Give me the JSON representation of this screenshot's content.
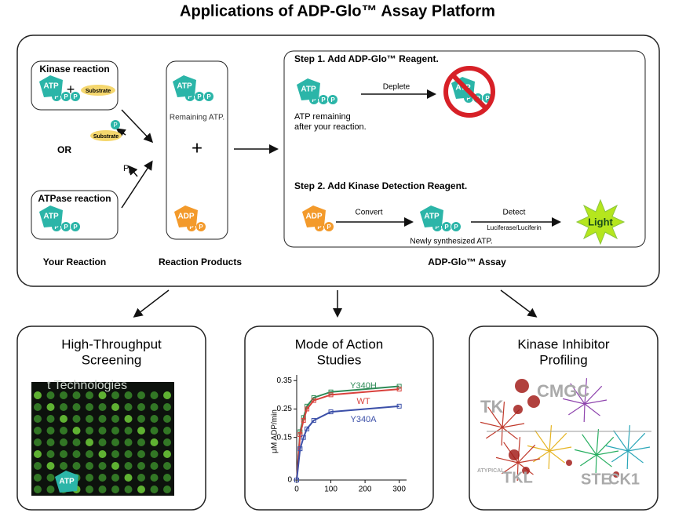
{
  "header": {
    "title": "Applications of ADP-Glo™ Assay Platform"
  },
  "labels": {
    "atp": "ATP",
    "adp": "ADP",
    "p": "P",
    "substrate": "Substrate",
    "plus": "+"
  },
  "your_reaction": {
    "kinase": "Kinase reaction",
    "or": "OR",
    "atpase": "ATPase reaction",
    "pi_main": "P",
    "pi_sub": "i",
    "caption": "Your Reaction"
  },
  "reaction_products": {
    "remaining": "Remaining ATP.",
    "caption": "Reaction Products"
  },
  "assay": {
    "step1": "Step 1. Add ADP-Glo™ Reagent.",
    "remaining_1": "ATP remaining",
    "remaining_2": "after your reaction.",
    "deplete": "Deplete",
    "step2": "Step 2. Add Kinase Detection Reagent.",
    "convert": "Convert",
    "newly": "Newly synthesized ATP.",
    "detect": "Detect",
    "luciferase": "Luciferase/Luciferin",
    "light": "Light",
    "caption": "ADP-Glo™ Assay"
  },
  "panels": [
    {
      "title": [
        "High-Throughput",
        "Screening"
      ],
      "image_text": "t Technologies"
    },
    {
      "title": [
        "Mode of Action",
        "Studies"
      ],
      "chart": {
        "ylabel": "μM ADP/min",
        "ylim": [
          0,
          0.37
        ],
        "yticks": [
          0,
          0.15,
          0.25,
          0.35
        ],
        "xlim": [
          0,
          310
        ],
        "xticks": [
          0,
          100,
          200,
          300
        ],
        "x": [
          0,
          10,
          20,
          30,
          50,
          100,
          300
        ],
        "series": [
          {
            "name": "Y340H",
            "color": "#2e8b57",
            "values": [
              0,
              0.17,
              0.22,
              0.26,
              0.29,
              0.31,
              0.33
            ]
          },
          {
            "name": "WT",
            "color": "#d9413c",
            "values": [
              0,
              0.16,
              0.21,
              0.25,
              0.28,
              0.3,
              0.32
            ]
          },
          {
            "name": "Y340A",
            "color": "#3b4fa8",
            "values": [
              0,
              0.11,
              0.15,
              0.18,
              0.21,
              0.24,
              0.26
            ]
          }
        ]
      }
    },
    {
      "title": [
        "Kinase Inhibitor",
        "Profiling"
      ],
      "groups": [
        "TK",
        "CMGC",
        "TKL",
        "STE",
        "CK1",
        "ATYPICAL"
      ]
    }
  ]
}
